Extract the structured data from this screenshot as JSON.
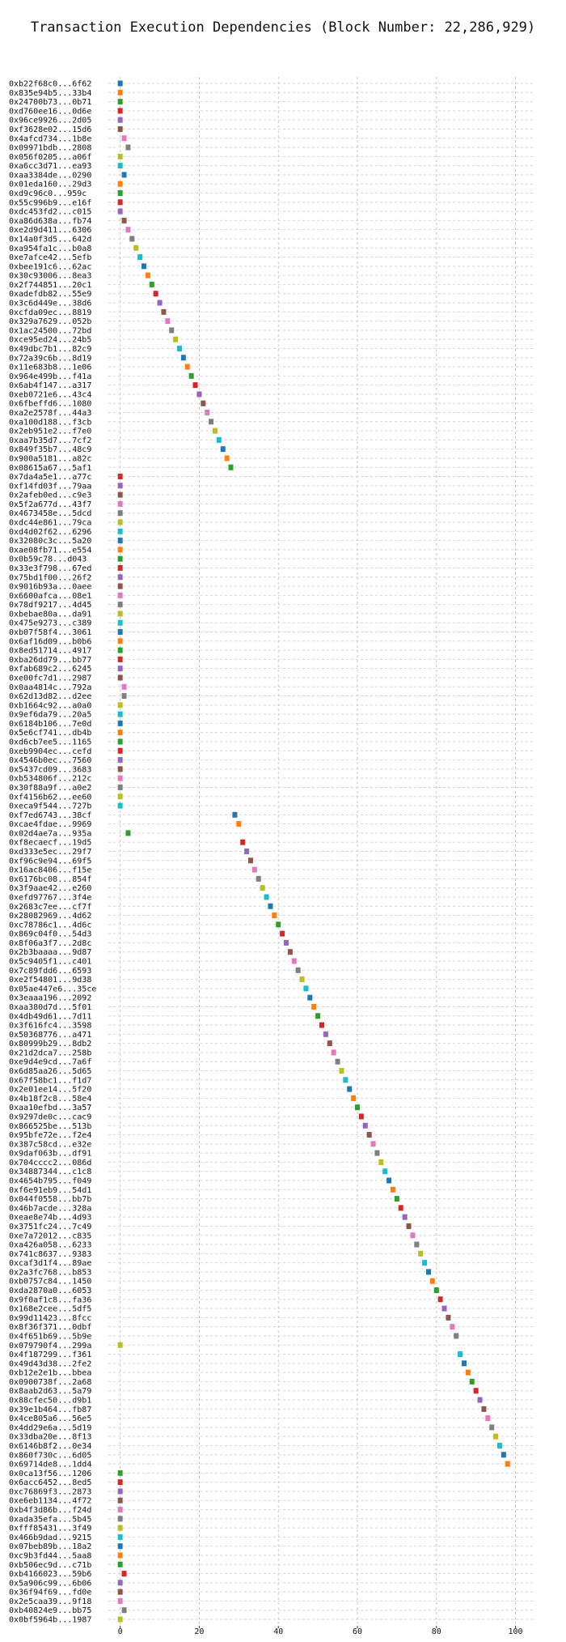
{
  "chart_data": {
    "type": "scatter",
    "title": "Transaction Execution Dependencies (Block Number: 22,286,929)",
    "xlabel": "",
    "ylabel": "",
    "xlim": [
      -3,
      105
    ],
    "xticks": [
      0,
      20,
      40,
      60,
      80,
      100
    ],
    "grid": true,
    "legend": "none",
    "palette": [
      "#1f77b4",
      "#ff7f0e",
      "#2ca02c",
      "#d62728",
      "#9467bd",
      "#8c564b",
      "#e377c2",
      "#7f7f7f",
      "#bcbd22",
      "#17becf"
    ],
    "points": [
      {
        "label": "0xb22f68c0...6f62",
        "x": 0
      },
      {
        "label": "0x835e94b5...33b4",
        "x": 0
      },
      {
        "label": "0x24700b73...0b71",
        "x": 0
      },
      {
        "label": "0xd760ee16...0d6e",
        "x": 0
      },
      {
        "label": "0x96ce9926...2d05",
        "x": 0
      },
      {
        "label": "0xf3628e02...15d6",
        "x": 0
      },
      {
        "label": "0x4afcd734...1b8e",
        "x": 1
      },
      {
        "label": "0x09971bdb...2808",
        "x": 2
      },
      {
        "label": "0x056f0205...a06f",
        "x": 0
      },
      {
        "label": "0xa6cc3d71...ea93",
        "x": 0
      },
      {
        "label": "0xaa3384de...0290",
        "x": 1
      },
      {
        "label": "0x01eda160...29d3",
        "x": 0
      },
      {
        "label": "0xd9c96c0...959c",
        "x": 0
      },
      {
        "label": "0x55c996b9...e16f",
        "x": 0
      },
      {
        "label": "0xdc453fd2...c015",
        "x": 0
      },
      {
        "label": "0xa86d638a...fb74",
        "x": 1
      },
      {
        "label": "0xe2d9d411...6306",
        "x": 2
      },
      {
        "label": "0x14a0f3d5...642d",
        "x": 3
      },
      {
        "label": "0xa954fa1c...b0a8",
        "x": 4
      },
      {
        "label": "0xe7afce42...5efb",
        "x": 5
      },
      {
        "label": "0xbee191c6...62ac",
        "x": 6
      },
      {
        "label": "0x30c93006...8ea3",
        "x": 7
      },
      {
        "label": "0x2f744851...20c1",
        "x": 8
      },
      {
        "label": "0xadefdb82...55e9",
        "x": 9
      },
      {
        "label": "0x3c6d449e...38d6",
        "x": 10
      },
      {
        "label": "0xcfda09ec...8819",
        "x": 11
      },
      {
        "label": "0x329a7629...052b",
        "x": 12
      },
      {
        "label": "0x1ac24500...72bd",
        "x": 13
      },
      {
        "label": "0xce95ed24...24b5",
        "x": 14
      },
      {
        "label": "0x49dbc7b1...82c9",
        "x": 15
      },
      {
        "label": "0x72a39c6b...8d19",
        "x": 16
      },
      {
        "label": "0x11e683b8...1e06",
        "x": 17
      },
      {
        "label": "0x964e499b...f41a",
        "x": 18
      },
      {
        "label": "0x6ab4f147...a317",
        "x": 19
      },
      {
        "label": "0xeb0721e6...43c4",
        "x": 20
      },
      {
        "label": "0x6fbeffd6...1080",
        "x": 21
      },
      {
        "label": "0xa2e2578f...44a3",
        "x": 22
      },
      {
        "label": "0xa100d188...f3cb",
        "x": 23
      },
      {
        "label": "0x2eb951e2...f7e0",
        "x": 24
      },
      {
        "label": "0xaa7b35d7...7cf2",
        "x": 25
      },
      {
        "label": "0x849f35b7...48c9",
        "x": 26
      },
      {
        "label": "0x900a5181...a82c",
        "x": 27
      },
      {
        "label": "0x08615a67...5af1",
        "x": 28
      },
      {
        "label": "0x7da4a5e1...a77c",
        "x": 0
      },
      {
        "label": "0xf14fd03f...79aa",
        "x": 0
      },
      {
        "label": "0x2afeb0ed...c9e3",
        "x": 0
      },
      {
        "label": "0x5f2a677d...43f7",
        "x": 0
      },
      {
        "label": "0x4673458e...5dcd",
        "x": 0
      },
      {
        "label": "0xdc44e861...79ca",
        "x": 0
      },
      {
        "label": "0xd4d02f62...6296",
        "x": 0
      },
      {
        "label": "0x32080c3c...5a20",
        "x": 0
      },
      {
        "label": "0xae08fb71...e554",
        "x": 0
      },
      {
        "label": "0x0b59c78...d043",
        "x": 0
      },
      {
        "label": "0x33e3f798...67ed",
        "x": 0
      },
      {
        "label": "0x75bd1f00...26f2",
        "x": 0
      },
      {
        "label": "0x9016b93a...0aee",
        "x": 0
      },
      {
        "label": "0x6600afca...08e1",
        "x": 0
      },
      {
        "label": "0x78df9217...4d45",
        "x": 0
      },
      {
        "label": "0xbebae80a...da91",
        "x": 0
      },
      {
        "label": "0x475e9273...c389",
        "x": 0
      },
      {
        "label": "0xb07f58f4...3061",
        "x": 0
      },
      {
        "label": "0x6af16d09...b0b6",
        "x": 0
      },
      {
        "label": "0x8ed51714...4917",
        "x": 0
      },
      {
        "label": "0xba26dd79...bb77",
        "x": 0
      },
      {
        "label": "0xfab689c2...6245",
        "x": 0
      },
      {
        "label": "0xe00fc7d1...2987",
        "x": 0
      },
      {
        "label": "0x0aa4814c...792a",
        "x": 1
      },
      {
        "label": "0x62d13d82...d2ee",
        "x": 1
      },
      {
        "label": "0xb1664c92...a0a0",
        "x": 0
      },
      {
        "label": "0x9ef6da79...20a5",
        "x": 0
      },
      {
        "label": "0x6184b106...7e0d",
        "x": 0
      },
      {
        "label": "0x5e6cf741...db4b",
        "x": 0
      },
      {
        "label": "0xd6cb7ee5...1165",
        "x": 0
      },
      {
        "label": "0xeb9904ec...cefd",
        "x": 0
      },
      {
        "label": "0x4546b0ec...7560",
        "x": 0
      },
      {
        "label": "0x5437cd09...3683",
        "x": 0
      },
      {
        "label": "0xb534806f...212c",
        "x": 0
      },
      {
        "label": "0x30f88a9f...a0e2",
        "x": 0
      },
      {
        "label": "0xf4156b62...ee60",
        "x": 0
      },
      {
        "label": "0xeca9f544...727b",
        "x": 0
      },
      {
        "label": "0xf7ed6743...38cf",
        "x": 29
      },
      {
        "label": "0xcae4fdae...9969",
        "x": 30
      },
      {
        "label": "0x02d4ae7a...935a",
        "x": 2
      },
      {
        "label": "0xf8ecaecf...19d5",
        "x": 31
      },
      {
        "label": "0xd333e5ec...29f7",
        "x": 32
      },
      {
        "label": "0xf96c9e94...69f5",
        "x": 33
      },
      {
        "label": "0x16ac8406...f15e",
        "x": 34
      },
      {
        "label": "0x6176bc08...854f",
        "x": 35
      },
      {
        "label": "0x3f9aae42...e260",
        "x": 36
      },
      {
        "label": "0xefd97767...3f4e",
        "x": 37
      },
      {
        "label": "0x2683c7ee...cf7f",
        "x": 38
      },
      {
        "label": "0x28082969...4d62",
        "x": 39
      },
      {
        "label": "0xc78786c1...4d6c",
        "x": 40
      },
      {
        "label": "0x869c04f0...54d3",
        "x": 41
      },
      {
        "label": "0x8f06a3f7...2d8c",
        "x": 42
      },
      {
        "label": "0x2b3baaaa...9d87",
        "x": 43
      },
      {
        "label": "0x5c9405f1...c401",
        "x": 44
      },
      {
        "label": "0x7c89fdd6...6593",
        "x": 45
      },
      {
        "label": "0xe2f54801...9d38",
        "x": 46
      },
      {
        "label": "0x05ae447e6...35ce",
        "x": 47
      },
      {
        "label": "0x3eaaa196...2092",
        "x": 48
      },
      {
        "label": "0xaa380d7d...5f01",
        "x": 49
      },
      {
        "label": "0x4db49d61...7d11",
        "x": 50
      },
      {
        "label": "0x3f616fc4...3598",
        "x": 51
      },
      {
        "label": "0x50368776...a471",
        "x": 52
      },
      {
        "label": "0x80999b29...8db2",
        "x": 53
      },
      {
        "label": "0x21d2dca7...258b",
        "x": 54
      },
      {
        "label": "0xe9d4e9cd...7a6f",
        "x": 55
      },
      {
        "label": "0x6d85aa26...5d65",
        "x": 56
      },
      {
        "label": "0x67f58bc1...f1d7",
        "x": 57
      },
      {
        "label": "0x2e01ee14...5f20",
        "x": 58
      },
      {
        "label": "0x4b18f2c8...58e4",
        "x": 59
      },
      {
        "label": "0xaa10efbd...3a57",
        "x": 60
      },
      {
        "label": "0x9297de0c...cac9",
        "x": 61
      },
      {
        "label": "0x866525be...513b",
        "x": 62
      },
      {
        "label": "0x95bfe72e...f2e4",
        "x": 63
      },
      {
        "label": "0x387c58cd...e32e",
        "x": 64
      },
      {
        "label": "0x9daf063b...df91",
        "x": 65
      },
      {
        "label": "0x704cccc2...086d",
        "x": 66
      },
      {
        "label": "0x34887344...c1c8",
        "x": 67
      },
      {
        "label": "0x4654b795...f049",
        "x": 68
      },
      {
        "label": "0xf6e91eb9...54d1",
        "x": 69
      },
      {
        "label": "0x044f0558...bb7b",
        "x": 70
      },
      {
        "label": "0x46b7acde...328a",
        "x": 71
      },
      {
        "label": "0xeae8e74b...4d93",
        "x": 72
      },
      {
        "label": "0x3751fc24...7c49",
        "x": 73
      },
      {
        "label": "0xe7a72012...c835",
        "x": 74
      },
      {
        "label": "0xa426a058...6233",
        "x": 75
      },
      {
        "label": "0x741c8637...9383",
        "x": 76
      },
      {
        "label": "0xcaf3d1f4...89ae",
        "x": 77
      },
      {
        "label": "0x2a3fc768...b853",
        "x": 78
      },
      {
        "label": "0xb0757c84...1450",
        "x": 79
      },
      {
        "label": "0xda2870a0...6053",
        "x": 80
      },
      {
        "label": "0x9f0af1c8...fa36",
        "x": 81
      },
      {
        "label": "0x168e2cee...5df5",
        "x": 82
      },
      {
        "label": "0x99d11423...8fcc",
        "x": 83
      },
      {
        "label": "0x8f36f371...0dbf",
        "x": 84
      },
      {
        "label": "0x4f651b69...5b9e",
        "x": 85
      },
      {
        "label": "0x079790f4...299a",
        "x": 0
      },
      {
        "label": "0x4f187299...f361",
        "x": 86
      },
      {
        "label": "0x49d43d38...2fe2",
        "x": 87
      },
      {
        "label": "0xb12e2e1b...bbea",
        "x": 88
      },
      {
        "label": "0x0900738f...2a68",
        "x": 89
      },
      {
        "label": "0x8aab2d63...5a79",
        "x": 90
      },
      {
        "label": "0x88cfec50...d9b1",
        "x": 91
      },
      {
        "label": "0x39e1b464...fb87",
        "x": 92
      },
      {
        "label": "0x4ce805a6...56e5",
        "x": 93
      },
      {
        "label": "0x4dd29e6a...5d19",
        "x": 94
      },
      {
        "label": "0x33dba20e...8f13",
        "x": 95
      },
      {
        "label": "0x6146b8f2...0e34",
        "x": 96
      },
      {
        "label": "0x860f730c...6d05",
        "x": 97
      },
      {
        "label": "0x69714de8...1dd4",
        "x": 98
      },
      {
        "label": "0x0ca13f56...1206",
        "x": 0
      },
      {
        "label": "0x6acc6452...8ed5",
        "x": 0
      },
      {
        "label": "0xc76869f3...2873",
        "x": 0
      },
      {
        "label": "0xe6eb1134...4f72",
        "x": 0
      },
      {
        "label": "0xb4f3d86b...f24d",
        "x": 0
      },
      {
        "label": "0xada35efa...5b45",
        "x": 0
      },
      {
        "label": "0xfff85431...3f49",
        "x": 0
      },
      {
        "label": "0x466b9dad...9215",
        "x": 0
      },
      {
        "label": "0x07beb89b...18a2",
        "x": 0
      },
      {
        "label": "0xc9b3fd44...5aa8",
        "x": 0
      },
      {
        "label": "0xb506ec9d...c71b",
        "x": 0
      },
      {
        "label": "0xb4166023...59b6",
        "x": 1
      },
      {
        "label": "0x5a906c99...6b06",
        "x": 0
      },
      {
        "label": "0x36f94f69...fd0e",
        "x": 0
      },
      {
        "label": "0x2e5caa39...9f18",
        "x": 0
      },
      {
        "label": "0xb40824e9...bb75",
        "x": 1
      },
      {
        "label": "0x0bf5964b...1987",
        "x": 0
      }
    ]
  }
}
